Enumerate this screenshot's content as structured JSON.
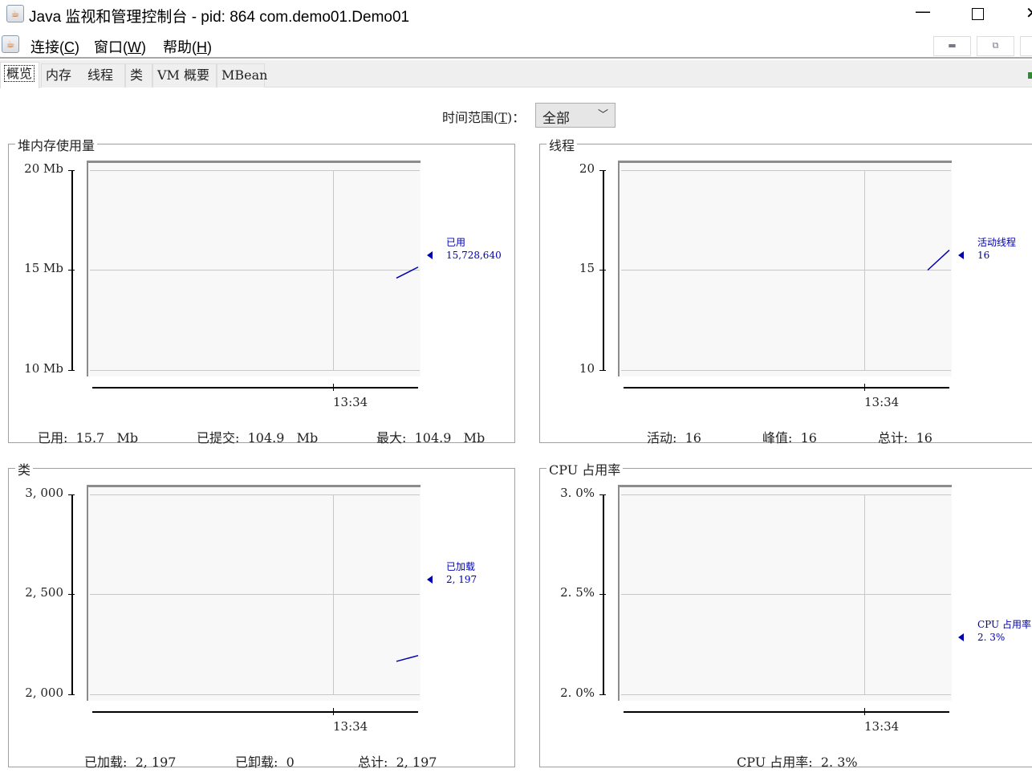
{
  "window": {
    "title": "Java 监视和管理控制台 - pid: 864 com.demo01.Demo01",
    "icon": "java-coffee-icon",
    "controls": [
      "minimize-icon",
      "maximize-icon",
      "close-icon"
    ]
  },
  "menubar": {
    "items": [
      {
        "label": "连接",
        "mnemonic": "C"
      },
      {
        "label": "窗口",
        "mnemonic": "W"
      },
      {
        "label": "帮助",
        "mnemonic": "H"
      }
    ]
  },
  "tabs": [
    {
      "label": "概览",
      "selected": true
    },
    {
      "label": "内存"
    },
    {
      "label": "线程"
    },
    {
      "label": "类"
    },
    {
      "label": "VM 概要"
    },
    {
      "label": "MBean"
    }
  ],
  "time_range": {
    "label": "时间范围",
    "mnemonic": "T",
    "suffix": "：",
    "value": "全部"
  },
  "series_color": "#0000b0",
  "panels": [
    {
      "title": "堆内存使用量",
      "y_ticks": [
        "20 Mb",
        "15 Mb",
        "10 Mb"
      ],
      "y_range": [
        10,
        20
      ],
      "x_tick": "13:34",
      "series_points": [
        14.6,
        15.15
      ],
      "legend": [
        "已用",
        "15,728,640"
      ],
      "footer": [
        {
          "label": "已用:",
          "value": "15.7",
          "unit": "Mb"
        },
        {
          "label": "已提交:",
          "value": "104.9",
          "unit": "Mb"
        },
        {
          "label": "最大:",
          "value": "104.9",
          "unit": "Mb"
        }
      ]
    },
    {
      "title": "线程",
      "y_ticks": [
        "20",
        "15",
        "10"
      ],
      "y_range": [
        10,
        20
      ],
      "x_tick": "13:34",
      "series_points": [
        15,
        16
      ],
      "legend": [
        "活动线程",
        "16"
      ],
      "footer": [
        {
          "label": "活动:",
          "value": "16"
        },
        {
          "label": "峰值:",
          "value": "16"
        },
        {
          "label": "总计:",
          "value": "16"
        }
      ]
    },
    {
      "title": "类",
      "y_ticks": [
        "3, 000",
        "2, 500",
        "2, 000"
      ],
      "y_range": [
        2000,
        3000
      ],
      "x_tick": "13:34",
      "series_points": [
        2165,
        2194
      ],
      "legend": [
        "已加载",
        "2, 197"
      ],
      "footer": [
        {
          "label": "已加载:",
          "value": "2, 197"
        },
        {
          "label": "已卸载:",
          "value": "0"
        },
        {
          "label": "总计:",
          "value": "2, 197"
        }
      ]
    },
    {
      "title": "CPU 占用率",
      "y_ticks": [
        "3. 0%",
        "2. 5%",
        "2. 0%"
      ],
      "y_range": [
        2.0,
        3.0
      ],
      "x_tick": "13:34",
      "series_points": [],
      "legend": [
        "CPU 占用率",
        "2. 3%"
      ],
      "footer": [
        {
          "label": "CPU 占用率:",
          "value": "2. 3%"
        }
      ]
    }
  ]
}
